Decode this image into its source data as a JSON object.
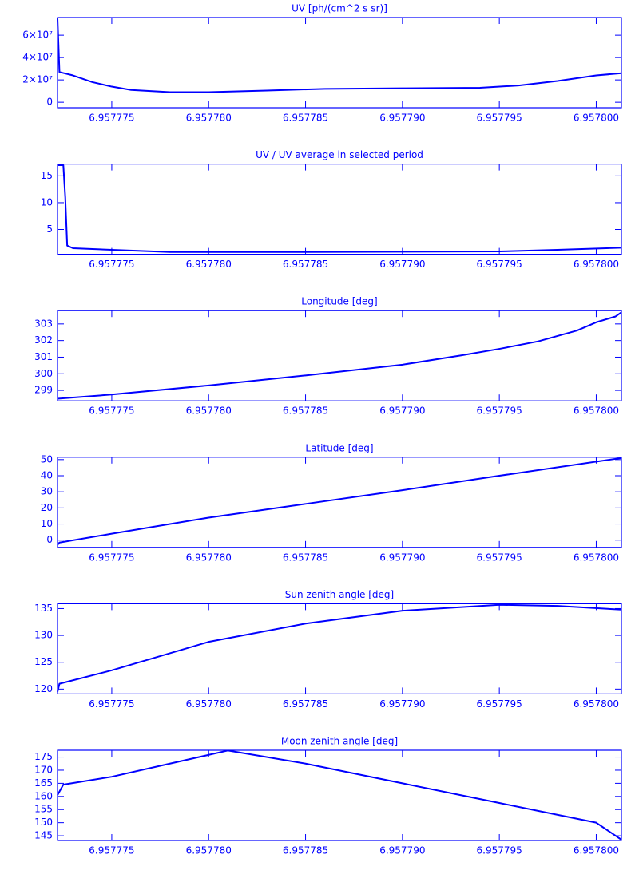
{
  "chart_data": [
    {
      "type": "line",
      "title": "UV [ph/(cm^2 s sr)]",
      "color": "#0000ff",
      "x": [
        6.9577722,
        6.9577723,
        6.957773,
        6.957774,
        6.957775,
        6.957776,
        6.957778,
        6.95778,
        6.957783,
        6.957786,
        6.95779,
        6.957794,
        6.957796,
        6.957798,
        6.9578,
        6.9578013
      ],
      "values": [
        75000000,
        27000000,
        24000000,
        18000000,
        14000000,
        11000000,
        9000000,
        9000000,
        10500000,
        12000000,
        12500000,
        13000000,
        15000000,
        19000000,
        24000000,
        26000000
      ],
      "xlim": [
        6.9577722,
        6.9578013
      ],
      "ylim": [
        -4900000,
        75800000
      ],
      "xticks": [
        6.957775,
        {
          "value": 6.95778,
          "label": "6.957780"
        },
        6.957785,
        {
          "value": 6.95779,
          "label": "6.957790"
        },
        6.957795,
        {
          "value": 6.9578,
          "label": "6.957800"
        }
      ],
      "yticks": [
        0,
        {
          "value": 20000000,
          "label": "2×10⁷"
        },
        {
          "value": 40000000,
          "label": "4×10⁷"
        },
        {
          "value": 60000000,
          "label": "6×10⁷"
        }
      ]
    },
    {
      "type": "line",
      "title": "UV / UV average in selected period",
      "color": "#0000ff",
      "x": [
        6.9577722,
        6.9577725,
        6.9577726,
        6.9577727,
        6.957773,
        6.957775,
        6.957778,
        6.957785,
        6.95779,
        6.957795,
        6.957798,
        6.9578013
      ],
      "values": [
        17,
        17,
        11,
        2,
        1.5,
        1.2,
        0.8,
        0.8,
        0.85,
        0.9,
        1.2,
        1.6
      ],
      "xlim": [
        6.9577722,
        6.9578013
      ],
      "ylim": [
        0.37,
        17.2
      ],
      "xticks": [
        6.957775,
        {
          "value": 6.95778,
          "label": "6.957780"
        },
        6.957785,
        {
          "value": 6.95779,
          "label": "6.957790"
        },
        6.957795,
        {
          "value": 6.9578,
          "label": "6.957800"
        }
      ],
      "yticks": [
        5,
        10,
        15
      ]
    },
    {
      "type": "line",
      "title": "Longitude [deg]",
      "color": "#0000ff",
      "x": [
        6.9577722,
        6.957775,
        6.95778,
        6.957785,
        6.95779,
        6.957793,
        6.957795,
        6.957797,
        6.957799,
        6.9578,
        6.957801,
        6.9578013
      ],
      "values": [
        298.5,
        298.75,
        299.3,
        299.9,
        300.55,
        301.1,
        301.5,
        301.95,
        302.6,
        303.1,
        303.45,
        303.7
      ],
      "xlim": [
        6.9577722,
        6.9578013
      ],
      "ylim": [
        298.37,
        303.8
      ],
      "xticks": [
        6.957775,
        {
          "value": 6.95778,
          "label": "6.957780"
        },
        6.957785,
        {
          "value": 6.95779,
          "label": "6.957790"
        },
        6.957795,
        {
          "value": 6.9578,
          "label": "6.957800"
        }
      ],
      "yticks": [
        299,
        300,
        301,
        302,
        303
      ]
    },
    {
      "type": "line",
      "title": "Latitude [deg]",
      "color": "#0000ff",
      "x": [
        6.9577722,
        6.9577723,
        6.957775,
        6.95778,
        6.957785,
        6.95779,
        6.957795,
        6.9578013
      ],
      "values": [
        -3,
        -1.5,
        4,
        14,
        22.5,
        31,
        40,
        51
      ],
      "xlim": [
        6.9577722,
        6.9578013
      ],
      "ylim": [
        -4.5,
        51.5
      ],
      "xticks": [
        6.957775,
        {
          "value": 6.95778,
          "label": "6.957780"
        },
        6.957785,
        {
          "value": 6.95779,
          "label": "6.957790"
        },
        6.957795,
        {
          "value": 6.9578,
          "label": "6.957800"
        }
      ],
      "yticks": [
        0,
        10,
        20,
        30,
        40,
        50
      ]
    },
    {
      "type": "line",
      "title": "Sun zenith angle [deg]",
      "color": "#0000ff",
      "x": [
        6.9577722,
        6.9577723,
        6.957775,
        6.95778,
        6.957785,
        6.95779,
        6.957795,
        6.957798,
        6.9578013
      ],
      "values": [
        119.5,
        121,
        123.5,
        128.8,
        132.2,
        134.6,
        135.7,
        135.5,
        134.8
      ],
      "xlim": [
        6.9577722,
        6.9578013
      ],
      "ylim": [
        119.1,
        135.9
      ],
      "xticks": [
        6.957775,
        {
          "value": 6.95778,
          "label": "6.957780"
        },
        6.957785,
        {
          "value": 6.95779,
          "label": "6.957790"
        },
        6.957795,
        {
          "value": 6.9578,
          "label": "6.957800"
        }
      ],
      "yticks": [
        120,
        125,
        130,
        135
      ]
    },
    {
      "type": "line",
      "title": "Moon zenith angle [deg]",
      "color": "#0000ff",
      "x": [
        6.9577722,
        6.9577725,
        6.957775,
        6.957778,
        6.957781,
        6.957785,
        6.95779,
        6.957795,
        6.9578,
        6.9578013
      ],
      "values": [
        160.5,
        164.5,
        167.5,
        172.5,
        177.5,
        172.5,
        165,
        157.5,
        150,
        143.5
      ],
      "xlim": [
        6.9577722,
        6.9578013
      ],
      "ylim": [
        143.2,
        177.6
      ],
      "xticks": [
        6.957775,
        {
          "value": 6.95778,
          "label": "6.957780"
        },
        6.957785,
        {
          "value": 6.95779,
          "label": "6.957790"
        },
        6.957795,
        {
          "value": 6.9578,
          "label": "6.957800"
        }
      ],
      "yticks": [
        145,
        150,
        155,
        160,
        165,
        170,
        175
      ]
    }
  ]
}
